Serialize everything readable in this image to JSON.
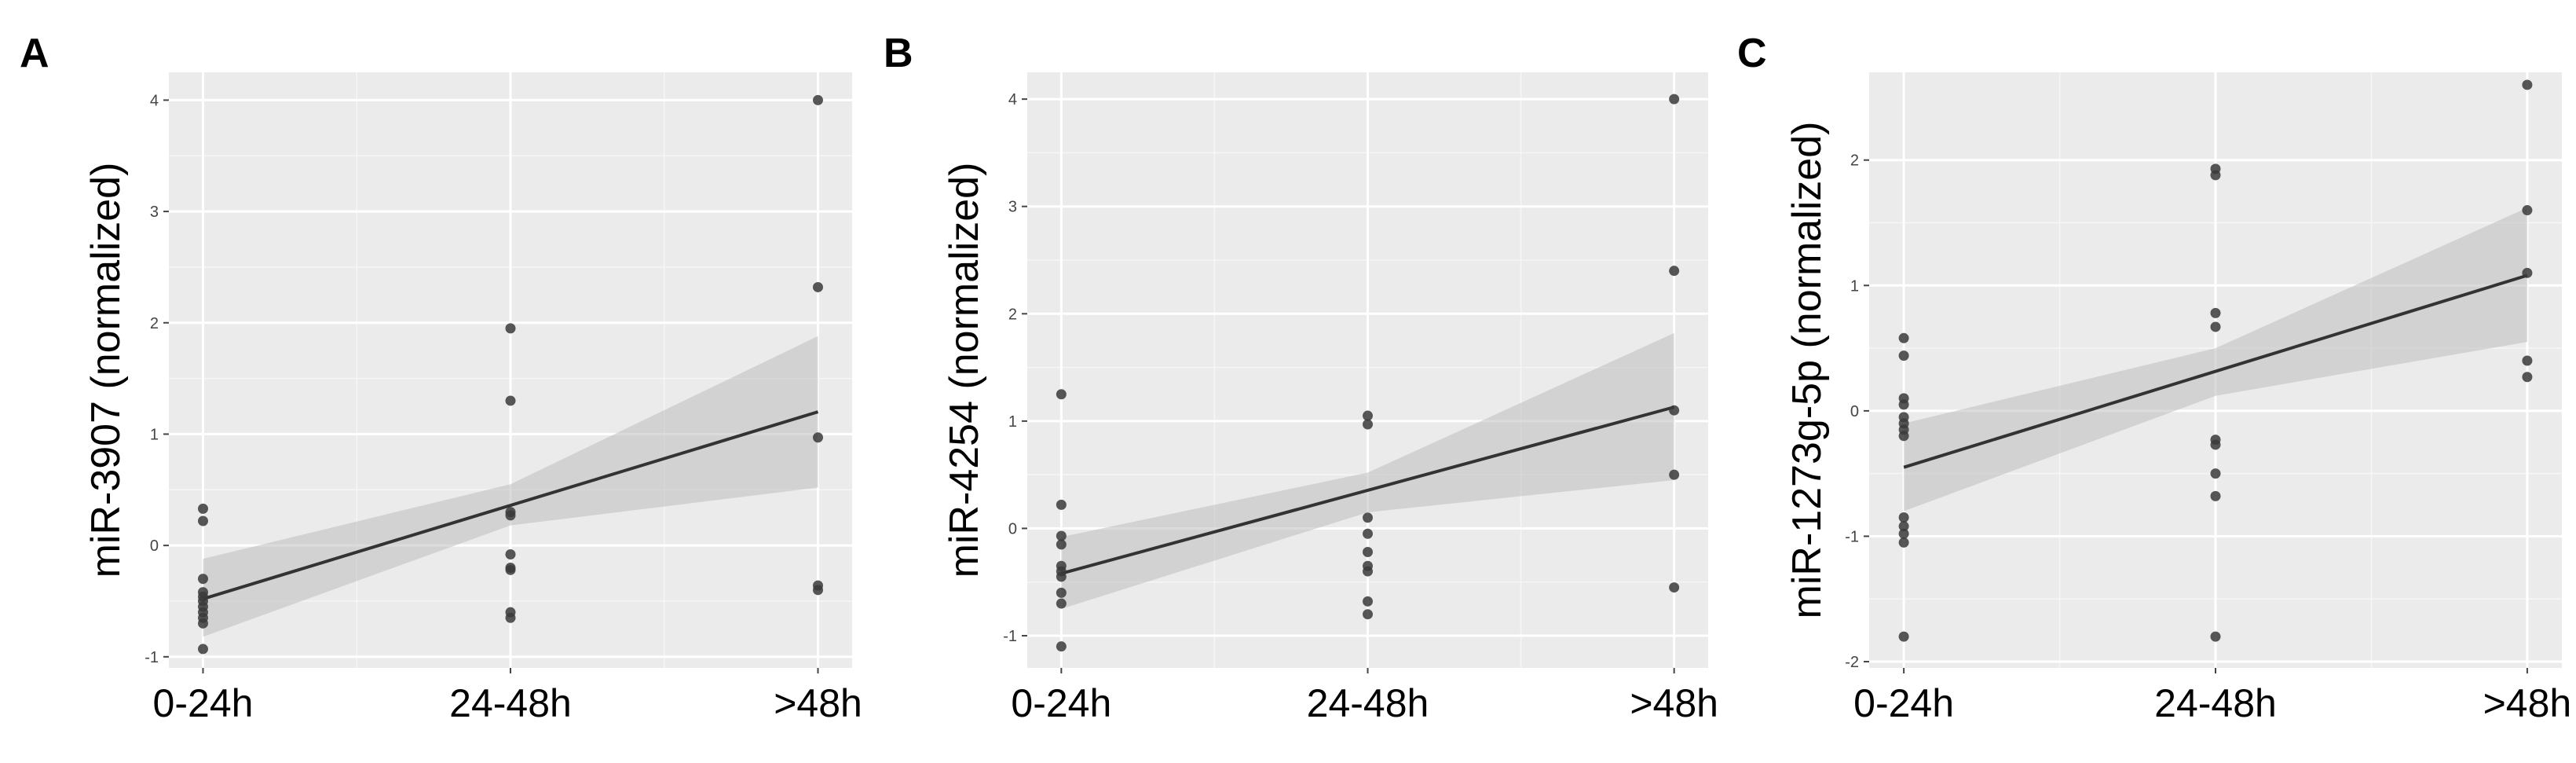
{
  "chart_data": [
    {
      "panel": "A",
      "type": "scatter",
      "ylabel": "miR-3907 (normalized)",
      "xlabel": "",
      "categories": [
        "0-24h",
        "24-48h",
        ">48h"
      ],
      "ytick_labels": [
        "-1",
        "0",
        "1",
        "2",
        "3",
        "4"
      ],
      "ylim": [
        -1.1,
        4.25
      ],
      "grid": true,
      "points": {
        "0-24h": [
          0.33,
          0.22,
          -0.3,
          -0.42,
          -0.46,
          -0.5,
          -0.55,
          -0.6,
          -0.65,
          -0.7,
          -0.93
        ],
        "24-48h": [
          1.95,
          1.3,
          0.3,
          0.27,
          -0.08,
          -0.2,
          -0.22,
          -0.6,
          -0.65
        ],
        ">48h": [
          4.0,
          2.32,
          0.97,
          -0.36,
          -0.4
        ]
      },
      "fit": {
        "start": -0.48,
        "end": 1.2
      },
      "ci_lower": [
        -0.82,
        0.18,
        0.52
      ],
      "ci_upper": [
        -0.12,
        0.55,
        1.88
      ]
    },
    {
      "panel": "B",
      "type": "scatter",
      "ylabel": "miR-4254 (normalized)",
      "xlabel": "",
      "categories": [
        "0-24h",
        "24-48h",
        ">48h"
      ],
      "ytick_labels": [
        "-1",
        "0",
        "1",
        "2",
        "3",
        "4"
      ],
      "ylim": [
        -1.3,
        4.25
      ],
      "grid": true,
      "points": {
        "0-24h": [
          1.25,
          0.22,
          -0.07,
          -0.15,
          -0.35,
          -0.4,
          -0.45,
          -0.6,
          -0.7,
          -1.1
        ],
        "24-48h": [
          1.05,
          0.97,
          0.1,
          -0.05,
          -0.22,
          -0.35,
          -0.4,
          -0.68,
          -0.8
        ],
        ">48h": [
          4.0,
          2.4,
          1.1,
          0.5,
          -0.55
        ]
      },
      "fit": {
        "start": -0.42,
        "end": 1.13
      },
      "ci_lower": [
        -0.75,
        0.15,
        0.45
      ],
      "ci_upper": [
        -0.08,
        0.52,
        1.82
      ]
    },
    {
      "panel": "C",
      "type": "scatter",
      "ylabel": "miR-1273g-5p (normalized)",
      "xlabel": "",
      "categories": [
        "0-24h",
        "24-48h",
        ">48h"
      ],
      "ytick_labels": [
        "-2",
        "-1",
        "0",
        "1",
        "2"
      ],
      "ylim": [
        -2.05,
        2.7
      ],
      "grid": true,
      "points": {
        "0-24h": [
          0.58,
          0.44,
          0.1,
          0.05,
          -0.05,
          -0.1,
          -0.15,
          -0.2,
          -0.85,
          -0.92,
          -0.98,
          -1.05,
          -1.8
        ],
        "24-48h": [
          1.93,
          1.88,
          0.78,
          0.67,
          -0.23,
          -0.27,
          -0.5,
          -0.68,
          -1.8
        ],
        ">48h": [
          2.6,
          1.6,
          1.1,
          0.4,
          0.27
        ]
      },
      "fit": {
        "start": -0.45,
        "end": 1.08
      },
      "ci_lower": [
        -0.8,
        0.12,
        0.55
      ],
      "ci_upper": [
        -0.1,
        0.5,
        1.62
      ]
    }
  ]
}
